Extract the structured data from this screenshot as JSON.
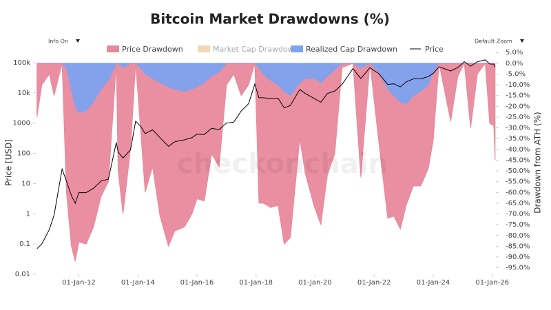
{
  "chart_data": {
    "type": "area",
    "title": "Bitcoin Market Drawdowns (%)",
    "watermark": "checkonchain",
    "controls": {
      "info": "Info On",
      "zoom": "Default Zoom"
    },
    "y_label": "Price [USD]",
    "y2_label": "Drawdown from ATH (%)",
    "log_y": true,
    "xlim": [
      "2010-07-18",
      "2026-02-15"
    ],
    "ylim": [
      0.01,
      300000
    ],
    "y2lim": [
      -98,
      7
    ],
    "xticks": [
      {
        "value": "2012-01-01",
        "label": "01-Jan-12"
      },
      {
        "value": "2014-01-01",
        "label": "01-Jan-14"
      },
      {
        "value": "2016-01-01",
        "label": "01-Jan-16"
      },
      {
        "value": "2018-01-01",
        "label": "01-Jan-18"
      },
      {
        "value": "2020-01-01",
        "label": "01-Jan-20"
      },
      {
        "value": "2022-01-01",
        "label": "01-Jan-22"
      },
      {
        "value": "2024-01-01",
        "label": "01-Jan-24"
      },
      {
        "value": "2026-01-01",
        "label": "01-Jan-26"
      }
    ],
    "yticks": [
      0.01,
      0.1,
      1,
      10,
      100,
      1000,
      {
        "value": 10000,
        "label": "10k"
      },
      {
        "value": 100000,
        "label": "100k"
      }
    ],
    "y2ticks": [
      {
        "value": 5,
        "label": "5.0%"
      },
      {
        "value": 0,
        "label": "0.0%"
      },
      {
        "value": -5,
        "label": "-5.0%"
      },
      {
        "value": -10,
        "label": "-10.0%"
      },
      {
        "value": -15,
        "label": "-15.0%"
      },
      {
        "value": -20,
        "label": "-20.0%"
      },
      {
        "value": -25,
        "label": "-25.0%"
      },
      {
        "value": -30,
        "label": "-30.0%"
      },
      {
        "value": -35,
        "label": "-35.0%"
      },
      {
        "value": -40,
        "label": "-40.0%"
      },
      {
        "value": -45,
        "label": "-45.0%"
      },
      {
        "value": -50,
        "label": "-50.0%"
      },
      {
        "value": -55,
        "label": "-55.0%"
      },
      {
        "value": -60,
        "label": "-60.0%"
      },
      {
        "value": -65,
        "label": "-65.0%"
      },
      {
        "value": -70,
        "label": "-70.0%"
      },
      {
        "value": -75,
        "label": "-75.0%"
      },
      {
        "value": -80,
        "label": "-80.0%"
      },
      {
        "value": -85,
        "label": "-85.0%"
      },
      {
        "value": -90,
        "label": "-90.0%"
      },
      {
        "value": -95,
        "label": "-95.0%"
      }
    ],
    "x": [
      "2010-08-01",
      "2010-10-01",
      "2011-01-01",
      "2011-03-01",
      "2011-06-08",
      "2011-08-01",
      "2011-10-01",
      "2011-11-18",
      "2012-01-01",
      "2012-04-01",
      "2012-07-01",
      "2012-10-01",
      "2013-01-01",
      "2013-04-09",
      "2013-05-01",
      "2013-07-01",
      "2013-10-01",
      "2013-12-04",
      "2014-02-01",
      "2014-04-01",
      "2014-07-01",
      "2014-10-01",
      "2015-01-14",
      "2015-04-01",
      "2015-08-01",
      "2015-11-01",
      "2016-01-01",
      "2016-04-01",
      "2016-07-01",
      "2016-10-01",
      "2017-01-01",
      "2017-04-01",
      "2017-07-01",
      "2017-10-01",
      "2017-12-17",
      "2018-02-06",
      "2018-04-01",
      "2018-07-01",
      "2018-10-01",
      "2018-12-15",
      "2019-03-01",
      "2019-06-26",
      "2019-09-01",
      "2019-12-17",
      "2020-03-13",
      "2020-06-01",
      "2020-09-01",
      "2020-12-01",
      "2021-04-14",
      "2021-07-20",
      "2021-11-10",
      "2022-03-01",
      "2022-06-18",
      "2022-09-01",
      "2022-11-21",
      "2023-02-01",
      "2023-05-01",
      "2023-08-01",
      "2023-11-01",
      "2024-01-01",
      "2024-03-14",
      "2024-08-05",
      "2024-11-01",
      "2025-01-20",
      "2025-04-08",
      "2025-07-01",
      "2025-10-06",
      "2025-12-01",
      "2026-01-20",
      "2026-02-05"
    ],
    "series": [
      {
        "name": "Price Drawdown",
        "type": "area",
        "axis": "y2",
        "color": "#e8899c",
        "values": [
          -25,
          -10,
          -5,
          -15,
          0,
          -60,
          -85,
          -92,
          -83,
          -84,
          -76,
          -62,
          -55,
          0,
          -50,
          -70,
          -40,
          0,
          -30,
          -60,
          -48,
          -71,
          -85,
          -78,
          -76,
          -70,
          -63,
          -64,
          -42,
          -48,
          -10,
          -5,
          -15,
          -10,
          0,
          -65,
          -65,
          -67,
          -66,
          -84,
          -81,
          -35,
          -51,
          -66,
          -75,
          -52,
          -42,
          -2,
          0,
          -53,
          0,
          -37,
          -72,
          -71,
          -77,
          -66,
          -57,
          -57,
          -49,
          -36,
          0,
          -27,
          -6,
          0,
          -30,
          -5,
          0,
          -28,
          -29,
          -45
        ]
      },
      {
        "name": "Market Cap Drawdown",
        "type": "area",
        "axis": "y2",
        "color": "#f0d9b5",
        "hidden": true
      },
      {
        "name": "Realized Cap Drawdown",
        "type": "area",
        "axis": "y2",
        "color": "#7ea3f0",
        "values": [
          0,
          0,
          0,
          0,
          0,
          -2,
          -12,
          -20,
          -23,
          -22,
          -18,
          -12,
          -8,
          0,
          0,
          -2,
          0,
          0,
          -2,
          -5,
          -7,
          -9,
          -11,
          -12,
          -13,
          -12,
          -11,
          -9,
          -6,
          -4,
          0,
          0,
          0,
          0,
          0,
          -2,
          -5,
          -8,
          -10,
          -13,
          -15,
          -9,
          -7,
          -7,
          -9,
          -6,
          -3,
          0,
          0,
          -2,
          0,
          -4,
          -12,
          -15,
          -18,
          -19,
          -15,
          -13,
          -10,
          -4,
          0,
          0,
          0,
          0,
          0,
          0,
          0,
          0,
          0,
          0
        ]
      },
      {
        "name": "Price",
        "type": "line",
        "axis": "y",
        "color": "#000000",
        "values": [
          0.07,
          0.1,
          0.3,
          0.9,
          30,
          12,
          4,
          2.2,
          5,
          5,
          7,
          12,
          14,
          230,
          110,
          70,
          130,
          1150,
          800,
          450,
          600,
          330,
          170,
          240,
          280,
          330,
          430,
          420,
          670,
          610,
          1000,
          1080,
          2500,
          4400,
          19500,
          6900,
          6900,
          6400,
          6600,
          3200,
          3800,
          13000,
          9600,
          6600,
          4900,
          9500,
          11500,
          19200,
          63500,
          29800,
          68000,
          43000,
          19000,
          20000,
          15800,
          23000,
          29000,
          29200,
          34500,
          44000,
          73000,
          53000,
          69000,
          108000,
          76000,
          107000,
          124000,
          90000,
          89000,
          70000
        ]
      }
    ]
  }
}
